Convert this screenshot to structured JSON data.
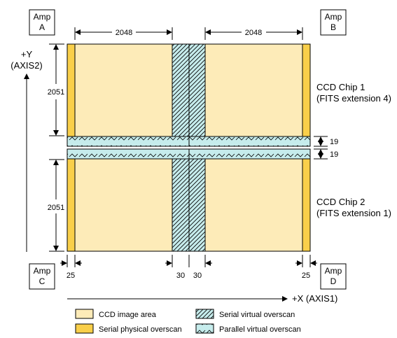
{
  "amps": {
    "a": [
      "Amp",
      "A"
    ],
    "b": [
      "Amp",
      "B"
    ],
    "c": [
      "Amp",
      "C"
    ],
    "d": [
      "Amp",
      "D"
    ]
  },
  "axes": {
    "y_label": "+Y",
    "y_label2": "(AXIS2)",
    "x_label": "+X (AXIS1)"
  },
  "dimensions": {
    "top_left_width": "2048",
    "top_right_width": "2048",
    "upper_height": "2051",
    "lower_height": "2051",
    "gap_top": "19",
    "gap_bottom": "19",
    "left_overscan": "25",
    "mid_left": "30",
    "mid_right": "30",
    "right_overscan": "25"
  },
  "chips": {
    "chip1_line1": "CCD Chip 1",
    "chip1_line2": "(FITS extension 4)",
    "chip2_line1": "CCD Chip 2",
    "chip2_line2": "(FITS extension 1)"
  },
  "legend": [
    {
      "label": "CCD image area",
      "swatch": "image-area"
    },
    {
      "label": "Serial virtual overscan",
      "swatch": "serial-virtual"
    },
    {
      "label": "Serial physical overscan",
      "swatch": "serial-physical"
    },
    {
      "label": "Parallel virtual overscan",
      "swatch": "parallel-virtual"
    }
  ],
  "colors": {
    "image_area": "#fdebb8",
    "physical_overscan": "#f9cf4a",
    "virtual_overscan": "#c6ecec",
    "outline": "#000000"
  }
}
